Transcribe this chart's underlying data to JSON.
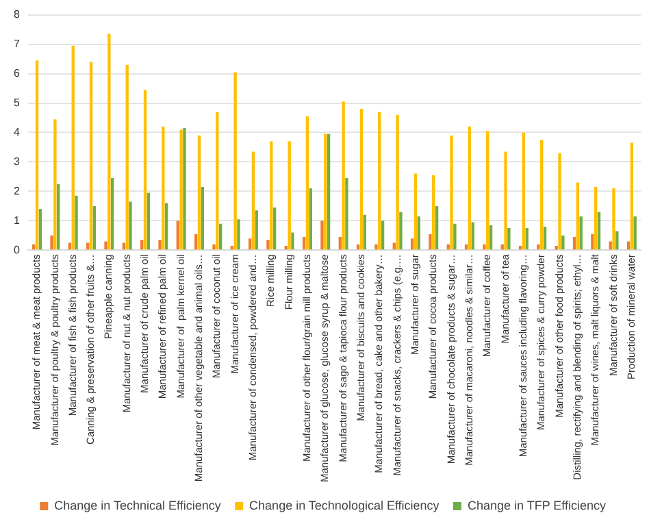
{
  "chart_data": {
    "type": "bar",
    "categories": [
      "Manufacturer of meat & meat products",
      "Manufacturer of poultry & poultry products",
      "Manufacturer of fish & fish products",
      "Canning & preservation of other fruits &…",
      "Pineapple canning",
      "Manufacturer of nut & nut products",
      "Manufacturer of crude palm oil",
      "Manufacturer of refined palm oil",
      "Manufacturer of  palm kernel oil",
      "Manufacturer of other vegetable and animal oils…",
      "Manufacturer of coconut oil",
      "Manufacturer of ice cream",
      "Manufacturer of condensed, powdered and…",
      "Rice milling",
      "Flour milling",
      "Manufacturer of other flour/grain mill products",
      "Manufacturer of glucose, glucose syrup & maltose",
      "Manufacturer of sago & tapioca flour products",
      "Manufacturer of biscuits and cookies",
      "Manufacturer of bread, cake and other bakery…",
      "Manufacturer of snacks, crackers & chips (e.g.…",
      "Manufacturer of sugar",
      "Manufacturer of cocoa products",
      "Manufacturer of chocolate products & sugar…",
      "Manufacturer of macaroni, noodles & similar…",
      "Manufacturer of coffee",
      "Manufacturer of tea",
      "Manufacturer of sauces including flavoring…",
      "Manufacturer of spices & curry powder",
      "Manufacturer of other food products",
      "Distilling, rectifying and blending of spirits; ethyl…",
      "Manufacturer of wines, malt liquors & malt",
      "Manufacturer of soft drinks",
      "Production of mineral water"
    ],
    "series": [
      {
        "name": "Change in Technical Efficiency",
        "color": "#ed7d31",
        "values": [
          0.2,
          0.5,
          0.25,
          0.25,
          0.3,
          0.25,
          0.35,
          0.35,
          1.0,
          0.55,
          0.2,
          0.15,
          0.4,
          0.35,
          0.15,
          0.45,
          1.0,
          0.45,
          0.2,
          0.2,
          0.25,
          0.4,
          0.55,
          0.2,
          0.2,
          0.2,
          0.2,
          0.15,
          0.2,
          0.15,
          0.45,
          0.55,
          0.3,
          0.3
        ]
      },
      {
        "name": "Change in Technological Efficiency",
        "color": "#ffc000",
        "values": [
          6.45,
          4.45,
          6.95,
          6.4,
          7.35,
          6.3,
          5.45,
          4.2,
          4.1,
          3.9,
          4.7,
          6.05,
          3.35,
          3.7,
          3.7,
          4.55,
          3.95,
          5.05,
          4.8,
          4.7,
          4.6,
          2.6,
          2.55,
          3.9,
          4.2,
          4.05,
          3.35,
          4.0,
          3.75,
          3.3,
          2.3,
          2.15,
          2.1,
          3.65
        ]
      },
      {
        "name": "Change in TFP Efficiency",
        "color": "#70ad47",
        "values": [
          1.4,
          2.25,
          1.85,
          1.5,
          2.45,
          1.65,
          1.95,
          1.6,
          4.15,
          2.15,
          0.9,
          1.05,
          1.35,
          1.45,
          0.6,
          2.1,
          3.95,
          2.45,
          1.2,
          1.0,
          1.3,
          1.15,
          1.5,
          0.9,
          0.95,
          0.85,
          0.75,
          0.75,
          0.8,
          0.5,
          1.15,
          1.3,
          0.65,
          1.15
        ]
      }
    ],
    "ylim": [
      0,
      8
    ],
    "yticks": [
      0,
      1,
      2,
      3,
      4,
      5,
      6,
      7,
      8
    ],
    "grid": "y",
    "legend": "bottom"
  }
}
